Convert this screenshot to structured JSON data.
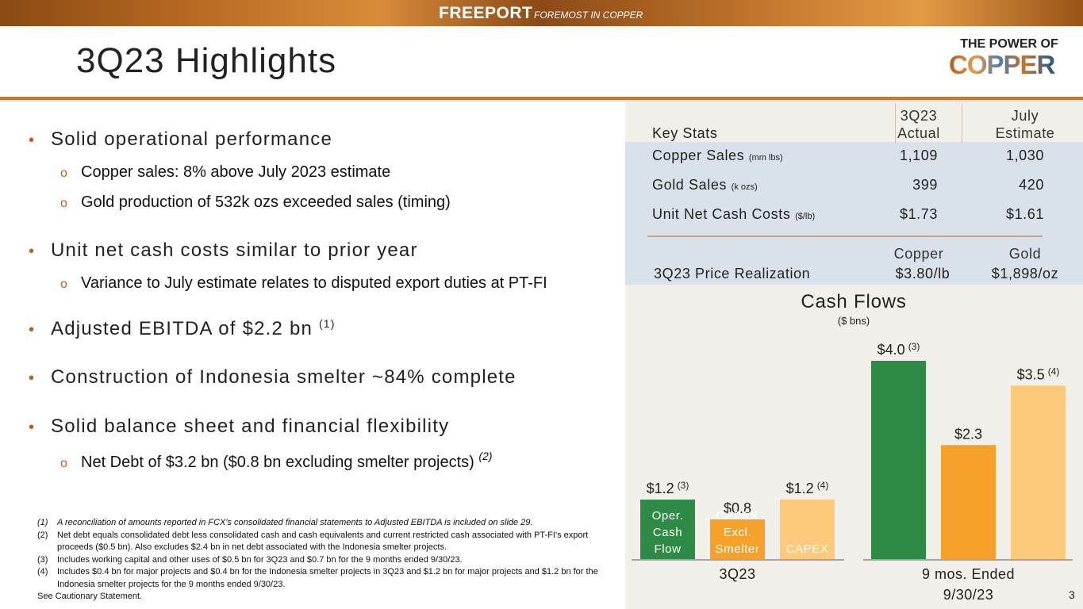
{
  "banner": {
    "brand": "FREEPORT",
    "tagline": "FOREMOST IN COPPER"
  },
  "header": {
    "title": "3Q23 Highlights",
    "logo_line1": "THE POWER OF",
    "logo_line2": "COPPER"
  },
  "bullets": [
    {
      "text": "Solid operational performance",
      "sub": [
        "Copper sales: 8% above July 2023 estimate",
        "Gold production of 532k ozs exceeded sales (timing)"
      ]
    },
    {
      "text": "Unit net cash costs similar to prior year",
      "sub": [
        "Variance to July estimate relates to disputed export duties at PT-FI"
      ]
    },
    {
      "text": "Adjusted EBITDA of $2.2 bn",
      "note": "(1)"
    },
    {
      "text": "Construction of Indonesia smelter ~84% complete"
    },
    {
      "text": "Solid balance sheet and financial flexibility",
      "sub": [
        "Net Debt of $3.2 bn ($0.8 bn excluding smelter projects)"
      ],
      "sub_note": "(2)"
    }
  ],
  "footnotes": [
    {
      "num": "(1)",
      "text": "A reconciliation of amounts reported in FCX's consolidated financial statements to Adjusted EBITDA is included on slide 29."
    },
    {
      "num": "(2)",
      "text": "Net debt equals consolidated debt less consolidated cash and cash equivalents and current restricted cash associated with PT-FI's export proceeds ($0.5 bn). Also excludes $2.4 bn in net debt associated with the Indonesia smelter projects."
    },
    {
      "num": "(3)",
      "text": "Includes working capital and other uses of $0.5 bn for 3Q23 and $0.7 bn for the 9 months ended 9/30/23."
    },
    {
      "num": "(4)",
      "text": "Includes $0.4 bn for major projects and $0.4 bn for the Indonesia smelter projects in 3Q23 and $1.2 bn for major projects and $1.2 bn for the Indonesia smelter projects for the 9 months ended 9/30/23."
    },
    {
      "num": "",
      "text": "See Cautionary Statement."
    }
  ],
  "key_stats": {
    "label": "Key Stats",
    "col1": "3Q23 Actual",
    "col1_line1": "3Q23",
    "col1_line2": "Actual",
    "col2_line1": "July",
    "col2_line2": "Estimate",
    "rows": [
      {
        "label": "Copper Sales",
        "unit": "(mm lbs)",
        "actual": "1,109",
        "estimate": "1,030"
      },
      {
        "label": "Gold Sales",
        "unit": "(k ozs)",
        "actual": "399",
        "estimate": "420"
      },
      {
        "label": "Unit Net Cash Costs",
        "unit": "($/lb)",
        "actual": "$1.73",
        "estimate": "$1.61"
      }
    ],
    "realization_label": "3Q23 Price Realization",
    "copper_header": "Copper",
    "gold_header": "Gold",
    "copper_price": "$3.80/lb",
    "gold_price": "$1,898/oz"
  },
  "chart_data": {
    "type": "bar",
    "title": "Cash Flows",
    "subtitle": "($ bns)",
    "groups": [
      "3Q23",
      "9 mos. Ended 9/30/23"
    ],
    "series": [
      {
        "name": "Oper. Cash Flow",
        "values": [
          1.2,
          4.0
        ],
        "labels": [
          "$1.2",
          "$4.0"
        ],
        "notes": [
          "(3)",
          "(3)"
        ],
        "color": "#2e8b45"
      },
      {
        "name": "CAPEX Excl. Smelter",
        "values": [
          0.8,
          2.3
        ],
        "labels": [
          "$0.8",
          "$2.3"
        ],
        "notes": [
          "",
          ""
        ],
        "color": "#f5a12a"
      },
      {
        "name": "CAPEX",
        "values": [
          1.2,
          3.5
        ],
        "labels": [
          "$1.2",
          "$3.5"
        ],
        "notes": [
          "(4)",
          "(4)"
        ],
        "color": "#fdc97a"
      }
    ],
    "inbar_labels": [
      [
        "Oper.",
        "Cash",
        "Flow"
      ],
      [
        "CAPEX",
        "Excl.",
        "Smelter"
      ],
      [
        "CAPEX"
      ]
    ],
    "group_label_lines": [
      [
        "3Q23"
      ],
      [
        "9 mos. Ended",
        "9/30/23"
      ]
    ],
    "ylim": [
      0,
      4.0
    ]
  },
  "page_number": "3"
}
